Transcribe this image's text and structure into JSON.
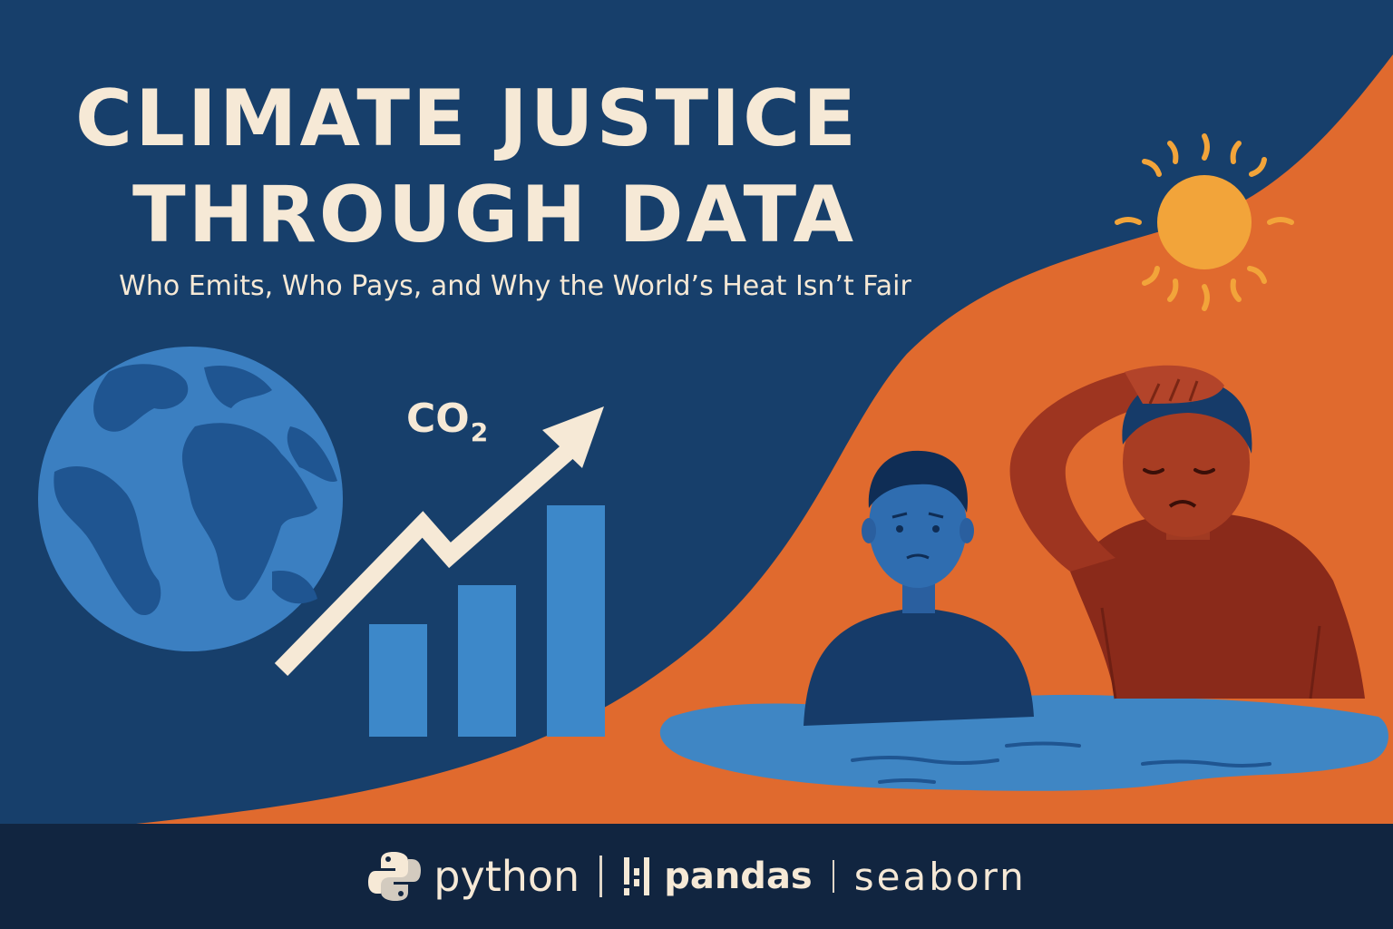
{
  "header": {
    "title_line1": "CLIMATE JUSTICE",
    "title_line2": "THROUGH DATA",
    "subtitle": "Who Emits, Who Pays, and Why the World’s Heat Isn’t Fair"
  },
  "chart_label": {
    "main": "CO",
    "subscript": "2"
  },
  "footer": {
    "python": "python",
    "pandas": "pandas",
    "seaborn": "seaborn"
  },
  "colors": {
    "navy_background": "#173f6b",
    "orange_wave": "#e06a2e",
    "cream_text": "#f6e9d6",
    "footer_band": "#112540",
    "water_blue": "#3f86c4",
    "sun_yellow": "#f2a43a"
  },
  "icons": [
    "globe-icon",
    "sun-icon",
    "trend-arrow-icon",
    "python-logo-icon",
    "pandas-logo-icon"
  ]
}
